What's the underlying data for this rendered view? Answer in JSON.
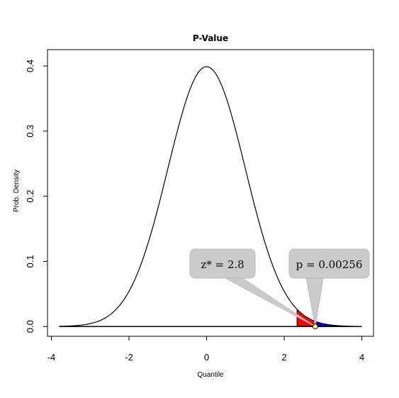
{
  "chart_data": {
    "type": "area",
    "title": "P-Value",
    "xlabel": "Quantile",
    "ylabel": "Prob. Density",
    "xlim": [
      -4.1,
      4.3
    ],
    "ylim": [
      -0.015,
      0.425
    ],
    "x_ticks": [
      {
        "value": -4,
        "label": "-4"
      },
      {
        "value": -2,
        "label": "-2"
      },
      {
        "value": 0,
        "label": "0"
      },
      {
        "value": 2,
        "label": "2"
      },
      {
        "value": 4,
        "label": "4"
      }
    ],
    "y_ticks": [
      {
        "value": 0.0,
        "label": "0.0"
      },
      {
        "value": 0.1,
        "label": "0.1"
      },
      {
        "value": 0.2,
        "label": "0.2"
      },
      {
        "value": 0.3,
        "label": "0.3"
      },
      {
        "value": 0.4,
        "label": "0.4"
      }
    ],
    "curve": {
      "distribution": "standard normal",
      "x_range": [
        -3.8,
        3.8
      ]
    },
    "shaded_regions": [
      {
        "from": 2.33,
        "to": 2.8,
        "color": "#ff0000"
      },
      {
        "from": 2.8,
        "to": 3.8,
        "color": "#0000cc"
      }
    ],
    "marker": {
      "x": 2.8,
      "y": 0,
      "fill": "#ffff66"
    },
    "grid": false,
    "callouts": [
      {
        "text": "z* = 2.8",
        "anchor_x": 2.8
      },
      {
        "text": "p = 0.00256",
        "anchor_x": 2.8
      }
    ]
  }
}
